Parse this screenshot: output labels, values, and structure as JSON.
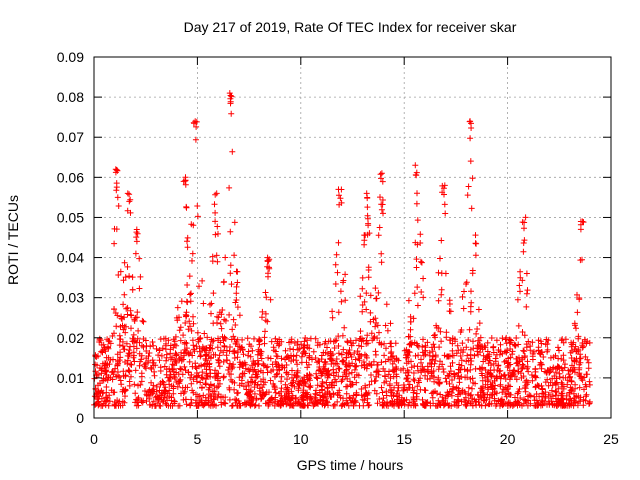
{
  "chart_data": {
    "type": "scatter",
    "title": "Day 217 of 2019, Rate Of TEC Index for receiver skar",
    "xlabel": "GPS time / hours",
    "ylabel": "ROTI / TECUs",
    "xlim": [
      0,
      25
    ],
    "ylim": [
      0,
      0.09
    ],
    "xticks": [
      0,
      5,
      10,
      15,
      20,
      25
    ],
    "xtick_labels": [
      "0",
      "5",
      "10",
      "15",
      "20",
      "25"
    ],
    "yticks": [
      0,
      0.01,
      0.02,
      0.03,
      0.04,
      0.05,
      0.06,
      0.07,
      0.08,
      0.09
    ],
    "ytick_labels": [
      "0",
      "0.01",
      "0.02",
      "0.03",
      "0.04",
      "0.05",
      "0.06",
      "0.07",
      "0.08",
      "0.09"
    ],
    "grid": true,
    "marker": "plus",
    "color": "#ff0000",
    "data_span_hours": [
      0,
      24
    ],
    "series": [
      {
        "name": "ROTI",
        "base_range": [
          0.003,
          0.02
        ],
        "typical": 0.01,
        "peaks": [
          {
            "x": 1.1,
            "y": 0.062
          },
          {
            "x": 1.7,
            "y": 0.056
          },
          {
            "x": 2.1,
            "y": 0.047
          },
          {
            "x": 4.4,
            "y": 0.06
          },
          {
            "x": 4.9,
            "y": 0.074
          },
          {
            "x": 5.9,
            "y": 0.056
          },
          {
            "x": 6.6,
            "y": 0.081
          },
          {
            "x": 8.4,
            "y": 0.04
          },
          {
            "x": 11.9,
            "y": 0.057
          },
          {
            "x": 13.2,
            "y": 0.056
          },
          {
            "x": 13.9,
            "y": 0.061
          },
          {
            "x": 15.6,
            "y": 0.063
          },
          {
            "x": 16.9,
            "y": 0.058
          },
          {
            "x": 18.2,
            "y": 0.074
          },
          {
            "x": 20.8,
            "y": 0.05
          },
          {
            "x": 23.6,
            "y": 0.049
          }
        ]
      }
    ]
  }
}
